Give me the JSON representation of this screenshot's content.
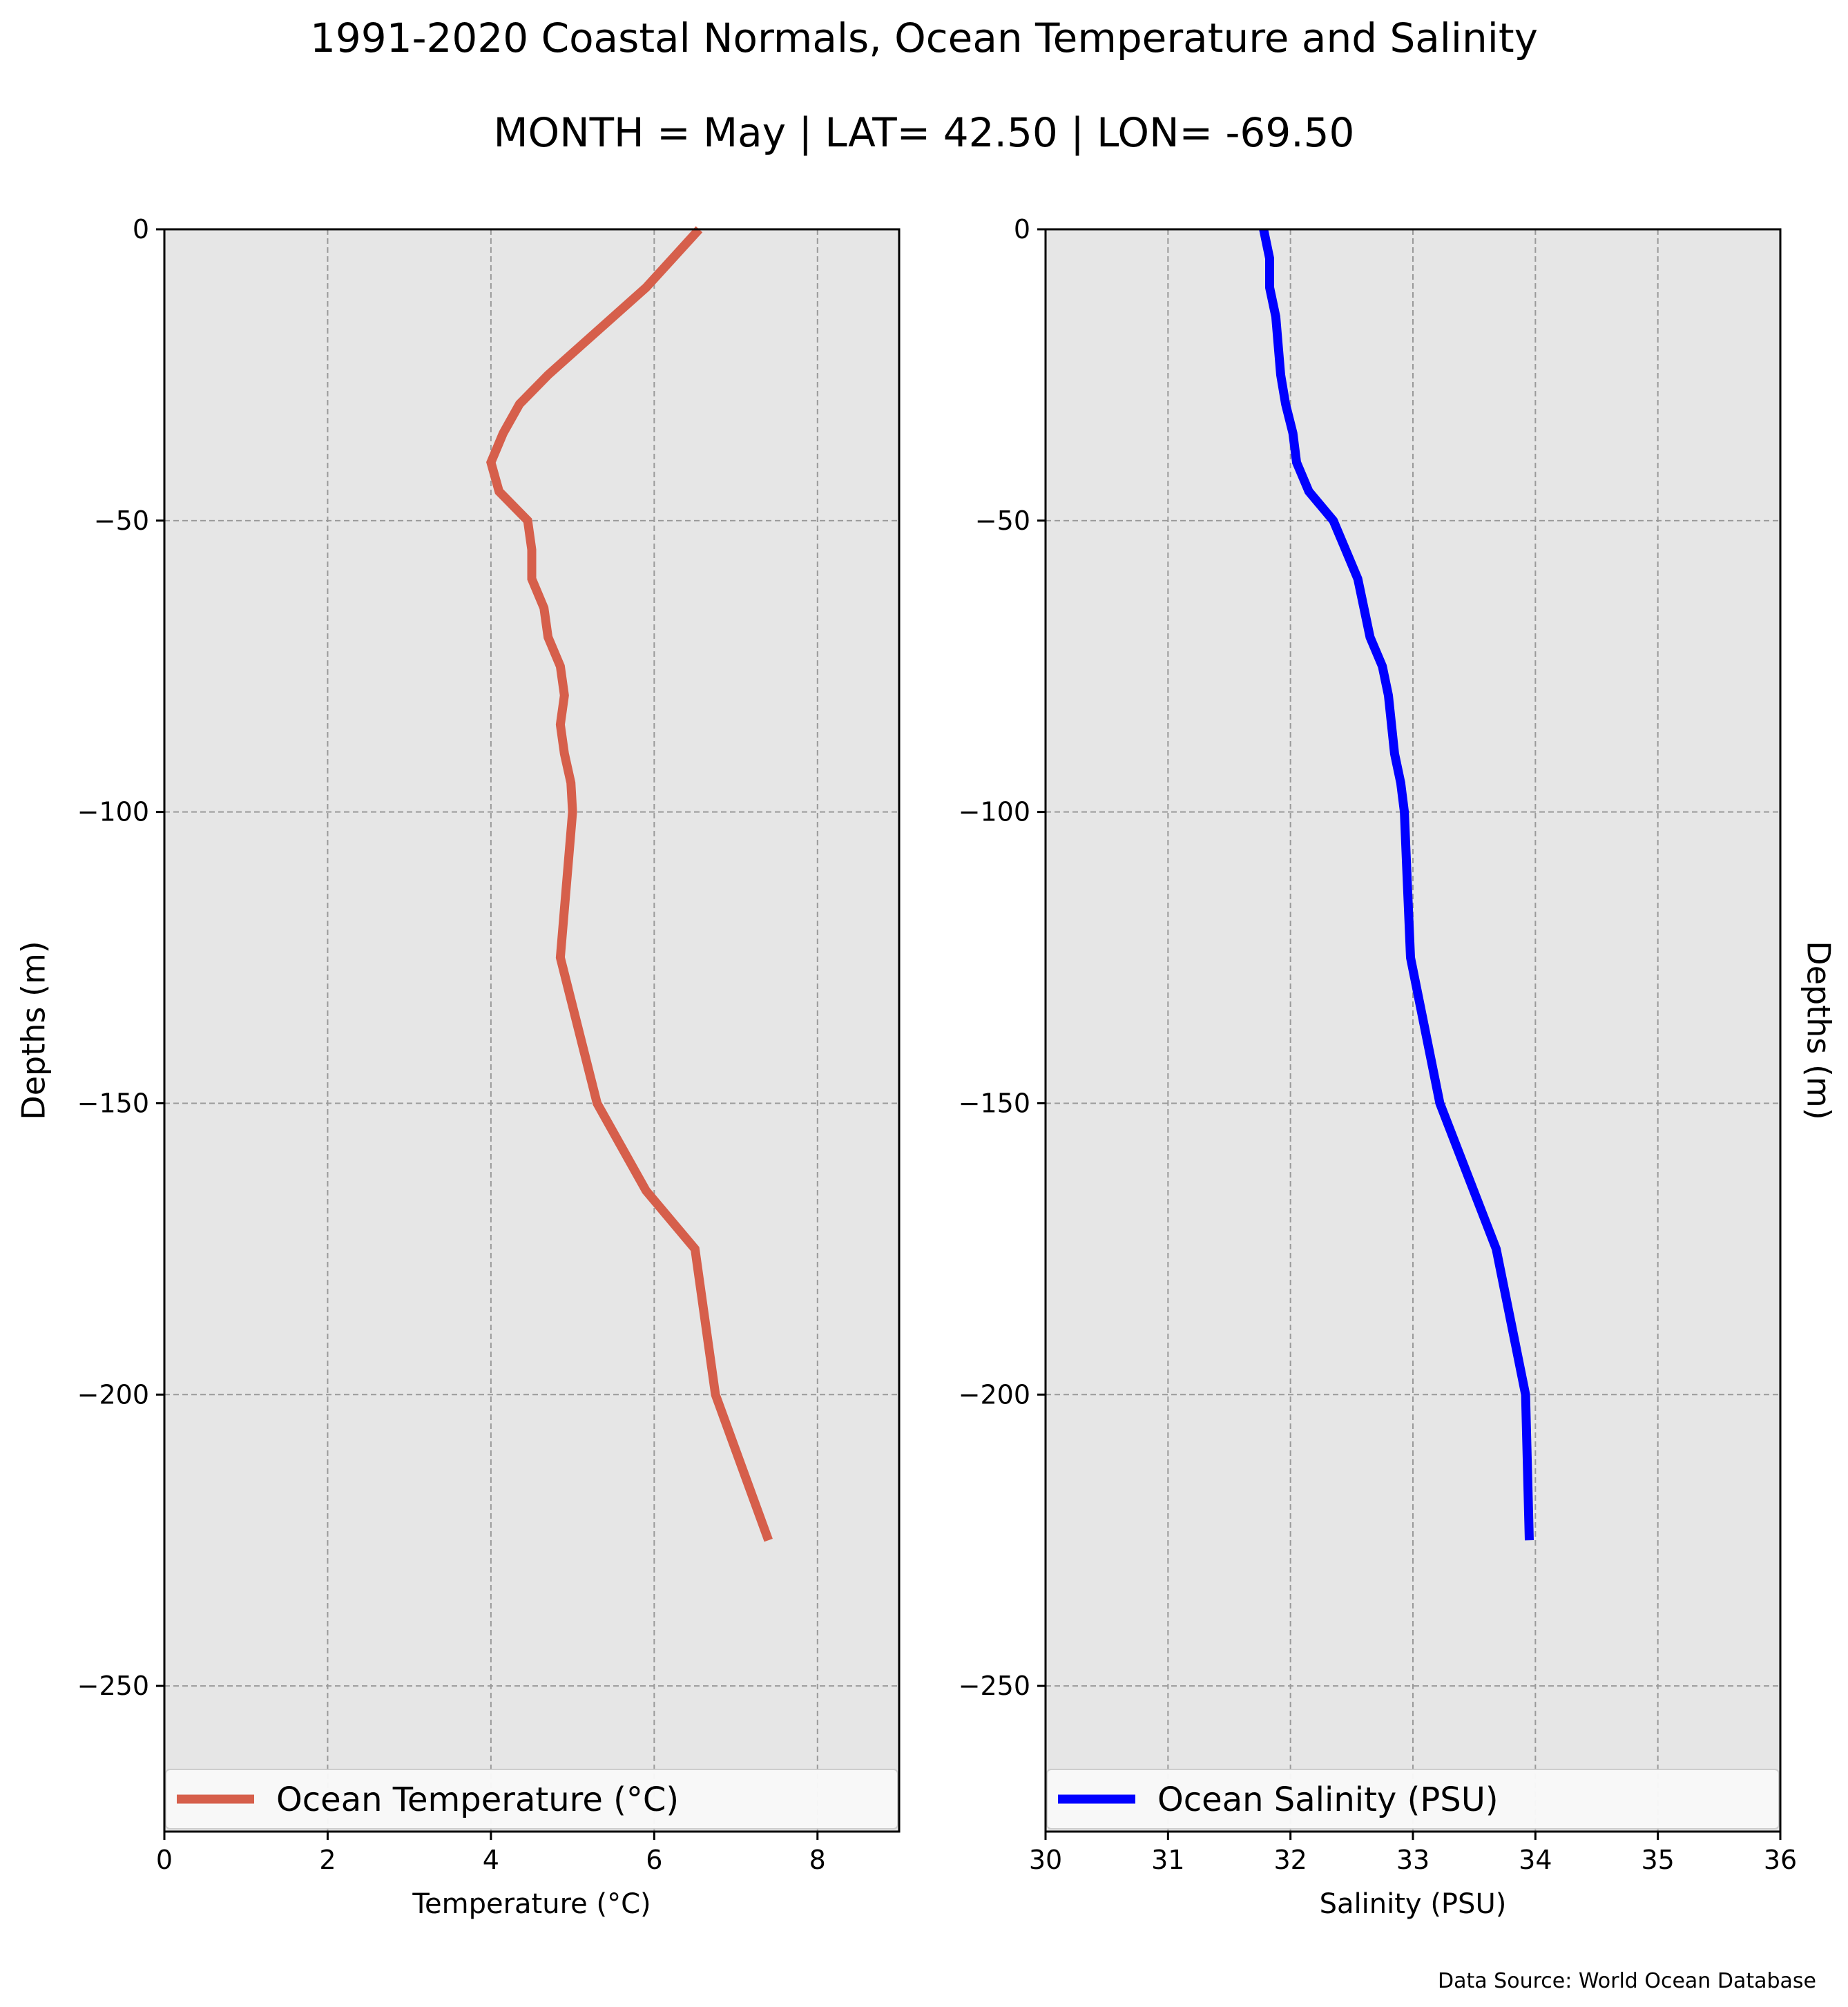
{
  "title": "1991-2020 Coastal Normals, Ocean Temperature and Salinity",
  "subtitle": "MONTH = May | LAT= 42.50 | LON= -69.50",
  "source": "Data Source: World Ocean Database",
  "chart_data": [
    {
      "type": "line",
      "xlabel": "Temperature (°C)",
      "ylabel": "Depths (m)",
      "xlim": [
        0,
        9
      ],
      "ylim": [
        -275,
        0
      ],
      "xticks": [
        0,
        2,
        4,
        6,
        8
      ],
      "yticks": [
        0,
        -50,
        -100,
        -150,
        -200,
        -250
      ],
      "grid": true,
      "legend_position": "bottom",
      "background": "#e6e6e6",
      "series": [
        {
          "name": "Ocean Temperature (°C)",
          "color": "#d65f4b",
          "x": [
            6.55,
            5.9,
            5.1,
            4.7,
            4.35,
            4.15,
            4.0,
            4.1,
            4.45,
            4.5,
            4.5,
            4.65,
            4.7,
            4.85,
            4.9,
            4.85,
            4.9,
            4.98,
            5.0,
            4.85,
            5.3,
            5.9,
            6.5,
            6.75,
            7.4
          ],
          "y": [
            0,
            -10,
            -20,
            -25,
            -30,
            -35,
            -40,
            -45,
            -50,
            -55,
            -60,
            -65,
            -70,
            -75,
            -80,
            -85,
            -90,
            -95,
            -100,
            -125,
            -150,
            -165,
            -175,
            -200,
            -225
          ]
        }
      ]
    },
    {
      "type": "line",
      "xlabel": "Salinity (PSU)",
      "ylabel": "Depths (m)",
      "xlim": [
        30,
        36
      ],
      "ylim": [
        -275,
        0
      ],
      "xticks": [
        30,
        31,
        32,
        33,
        34,
        35,
        36
      ],
      "yticks": [
        0,
        -50,
        -100,
        -150,
        -200,
        -250
      ],
      "grid": true,
      "legend_position": "bottom",
      "background": "#e6e6e6",
      "series": [
        {
          "name": "Ocean Salinity (PSU)",
          "color": "#0000ff",
          "x": [
            31.78,
            31.83,
            31.83,
            31.88,
            31.92,
            31.96,
            32.02,
            32.05,
            32.15,
            32.35,
            32.45,
            32.55,
            32.65,
            32.75,
            32.8,
            32.85,
            32.9,
            32.93,
            32.95,
            32.98,
            33.22,
            33.68,
            33.92,
            33.95
          ],
          "y": [
            0,
            -5,
            -10,
            -15,
            -25,
            -30,
            -35,
            -40,
            -45,
            -50,
            -55,
            -60,
            -70,
            -75,
            -80,
            -90,
            -95,
            -100,
            -110,
            -125,
            -150,
            -175,
            -200,
            -225
          ]
        }
      ]
    }
  ]
}
